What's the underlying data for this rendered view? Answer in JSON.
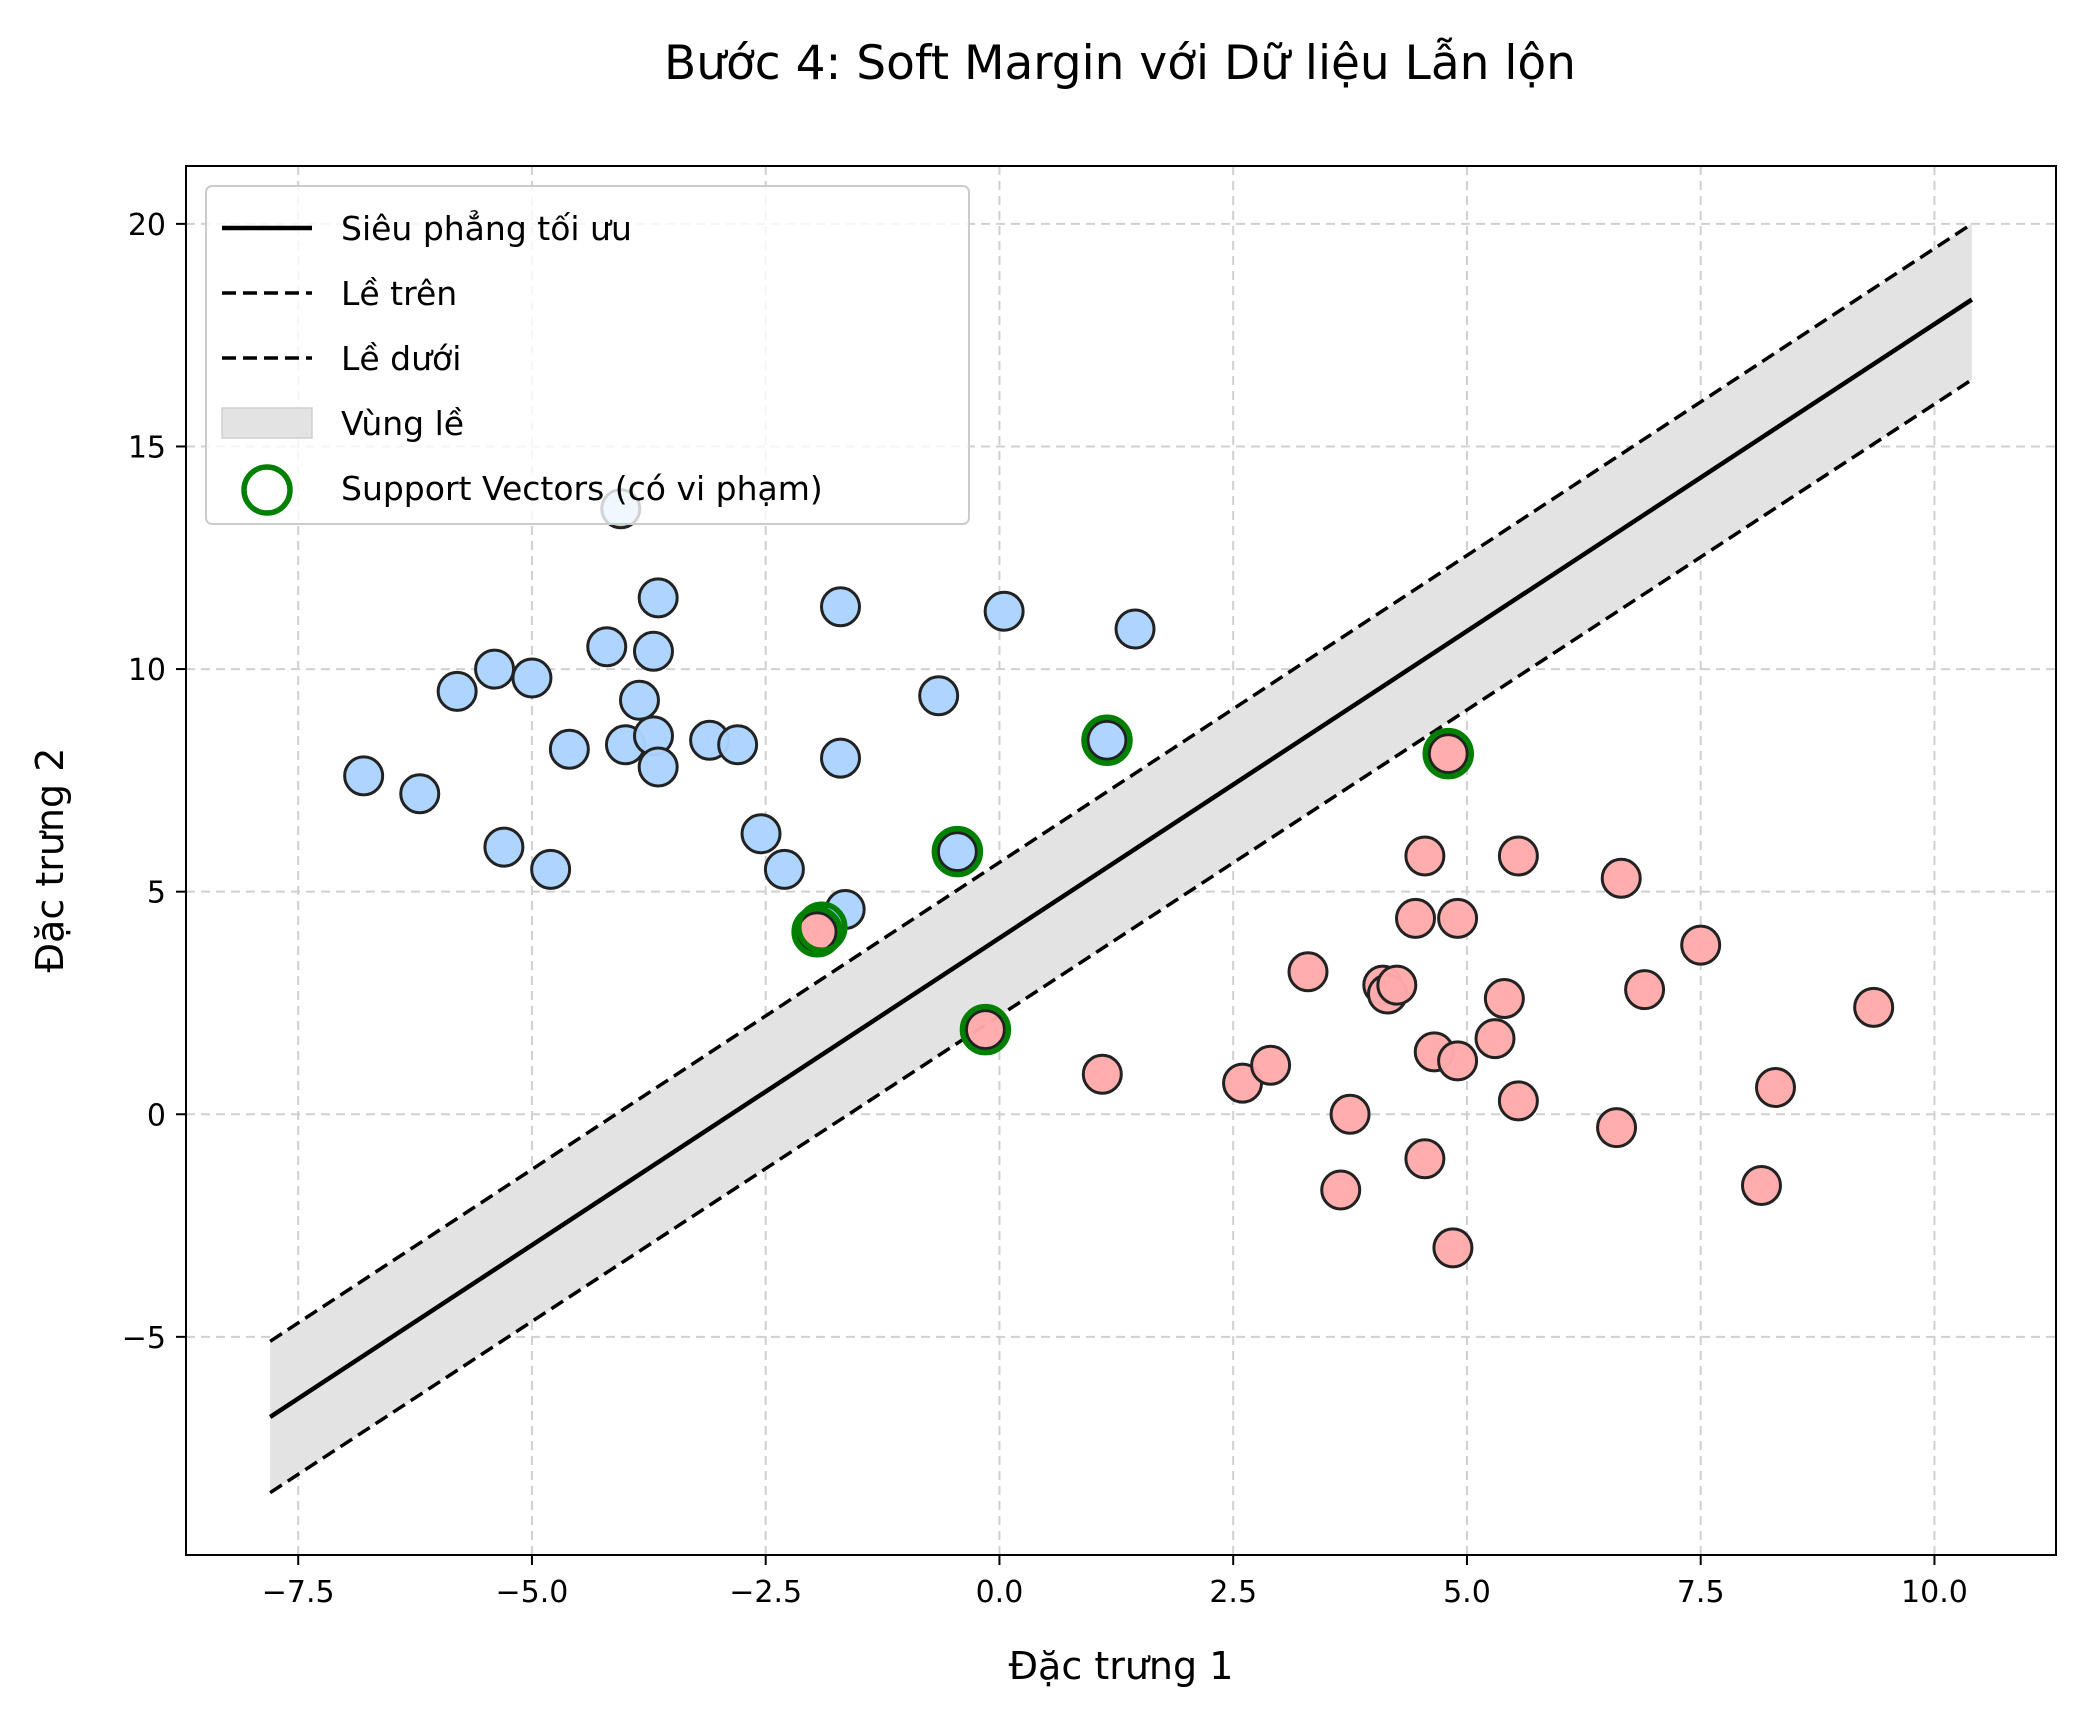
{
  "chart_data": {
    "type": "scatter",
    "title": "Bước 4: Soft Margin với Dữ liệu Lẫn lộn",
    "xlabel": "Đặc trưng 1",
    "ylabel": "Đặc trưng 2",
    "xlim": [
      -8.7,
      11.3
    ],
    "ylim": [
      -9.9,
      21.3
    ],
    "xticks": [
      -7.5,
      -5.0,
      -2.5,
      0.0,
      2.5,
      5.0,
      7.5,
      10.0
    ],
    "xtick_labels": [
      "−7.5",
      "−5.0",
      "−2.5",
      "0.0",
      "2.5",
      "5.0",
      "7.5",
      "10.0"
    ],
    "yticks": [
      -5,
      0,
      5,
      10,
      15,
      20
    ],
    "ytick_labels": [
      "−5",
      "0",
      "5",
      "10",
      "15",
      "20"
    ],
    "grid": true,
    "legend_position": "upper-left",
    "legend": [
      {
        "label": "Siêu phẳng tối ưu",
        "kind": "solid-line"
      },
      {
        "label": "Lề trên",
        "kind": "dashed-line"
      },
      {
        "label": "Lề dưới",
        "kind": "dashed-line"
      },
      {
        "label": "Vùng lề",
        "kind": "patch"
      },
      {
        "label": "Support Vectors (có vi phạm)",
        "kind": "ring"
      }
    ],
    "lines": {
      "x_range": [
        -7.8,
        10.4
      ],
      "hyperplane": [
        [
          -7.8,
          -6.8
        ],
        [
          10.4,
          18.3
        ]
      ],
      "upper_margin": [
        [
          -7.8,
          -5.1
        ],
        [
          10.4,
          20.0
        ]
      ],
      "lower_margin": [
        [
          -7.8,
          -8.5
        ],
        [
          10.4,
          16.5
        ]
      ]
    },
    "series": [
      {
        "class": "blue",
        "color": "#aad4ff",
        "points": [
          [
            -6.8,
            7.6
          ],
          [
            -6.2,
            7.2
          ],
          [
            -5.8,
            9.5
          ],
          [
            -5.4,
            10.0
          ],
          [
            -5.0,
            9.8
          ],
          [
            -5.3,
            6.0
          ],
          [
            -4.8,
            5.5
          ],
          [
            -4.6,
            8.2
          ],
          [
            -4.2,
            10.5
          ],
          [
            -4.05,
            13.6
          ],
          [
            -4.0,
            8.3
          ],
          [
            -3.85,
            9.3
          ],
          [
            -3.7,
            8.5
          ],
          [
            -3.7,
            10.4
          ],
          [
            -3.65,
            11.6
          ],
          [
            -3.65,
            7.8
          ],
          [
            -3.1,
            8.4
          ],
          [
            -2.8,
            8.3
          ],
          [
            -2.55,
            6.3
          ],
          [
            -2.3,
            5.5
          ],
          [
            -1.7,
            11.4
          ],
          [
            -1.7,
            8.0
          ],
          [
            -1.65,
            4.6
          ],
          [
            -0.65,
            9.4
          ],
          [
            0.05,
            11.3
          ],
          [
            1.45,
            10.9
          ],
          [
            -0.45,
            5.9
          ],
          [
            1.15,
            8.4
          ]
        ]
      },
      {
        "class": "red",
        "color": "#ffaaaa",
        "points": [
          [
            -1.95,
            4.1
          ],
          [
            -0.15,
            1.9
          ],
          [
            4.8,
            8.1
          ],
          [
            1.1,
            0.9
          ],
          [
            2.6,
            0.7
          ],
          [
            2.9,
            1.1
          ],
          [
            3.3,
            3.2
          ],
          [
            3.75,
            0.0
          ],
          [
            3.65,
            -1.7
          ],
          [
            4.1,
            2.9
          ],
          [
            4.15,
            2.7
          ],
          [
            4.25,
            2.9
          ],
          [
            4.45,
            4.4
          ],
          [
            4.55,
            5.8
          ],
          [
            4.55,
            -1.0
          ],
          [
            4.65,
            1.4
          ],
          [
            4.85,
            -3.0
          ],
          [
            4.9,
            1.2
          ],
          [
            4.9,
            4.4
          ],
          [
            5.3,
            1.7
          ],
          [
            5.4,
            2.6
          ],
          [
            5.55,
            0.3
          ],
          [
            5.55,
            5.8
          ],
          [
            6.6,
            -0.3
          ],
          [
            6.65,
            5.3
          ],
          [
            6.9,
            2.8
          ],
          [
            7.5,
            3.8
          ],
          [
            8.15,
            -1.6
          ],
          [
            8.3,
            0.6
          ],
          [
            9.35,
            2.4
          ]
        ]
      }
    ],
    "support_vectors": [
      [
        -1.95,
        4.1
      ],
      [
        -1.9,
        4.2
      ],
      [
        -0.45,
        5.9
      ],
      [
        -0.15,
        1.9
      ],
      [
        1.15,
        8.4
      ],
      [
        4.8,
        8.1
      ]
    ],
    "colors": {
      "hyperplane": "#000000",
      "margin_fill": "#e3e3e3",
      "support_vector_ring": "#008000",
      "marker_edge": "#222222",
      "grid": "#d0d0d0"
    }
  }
}
